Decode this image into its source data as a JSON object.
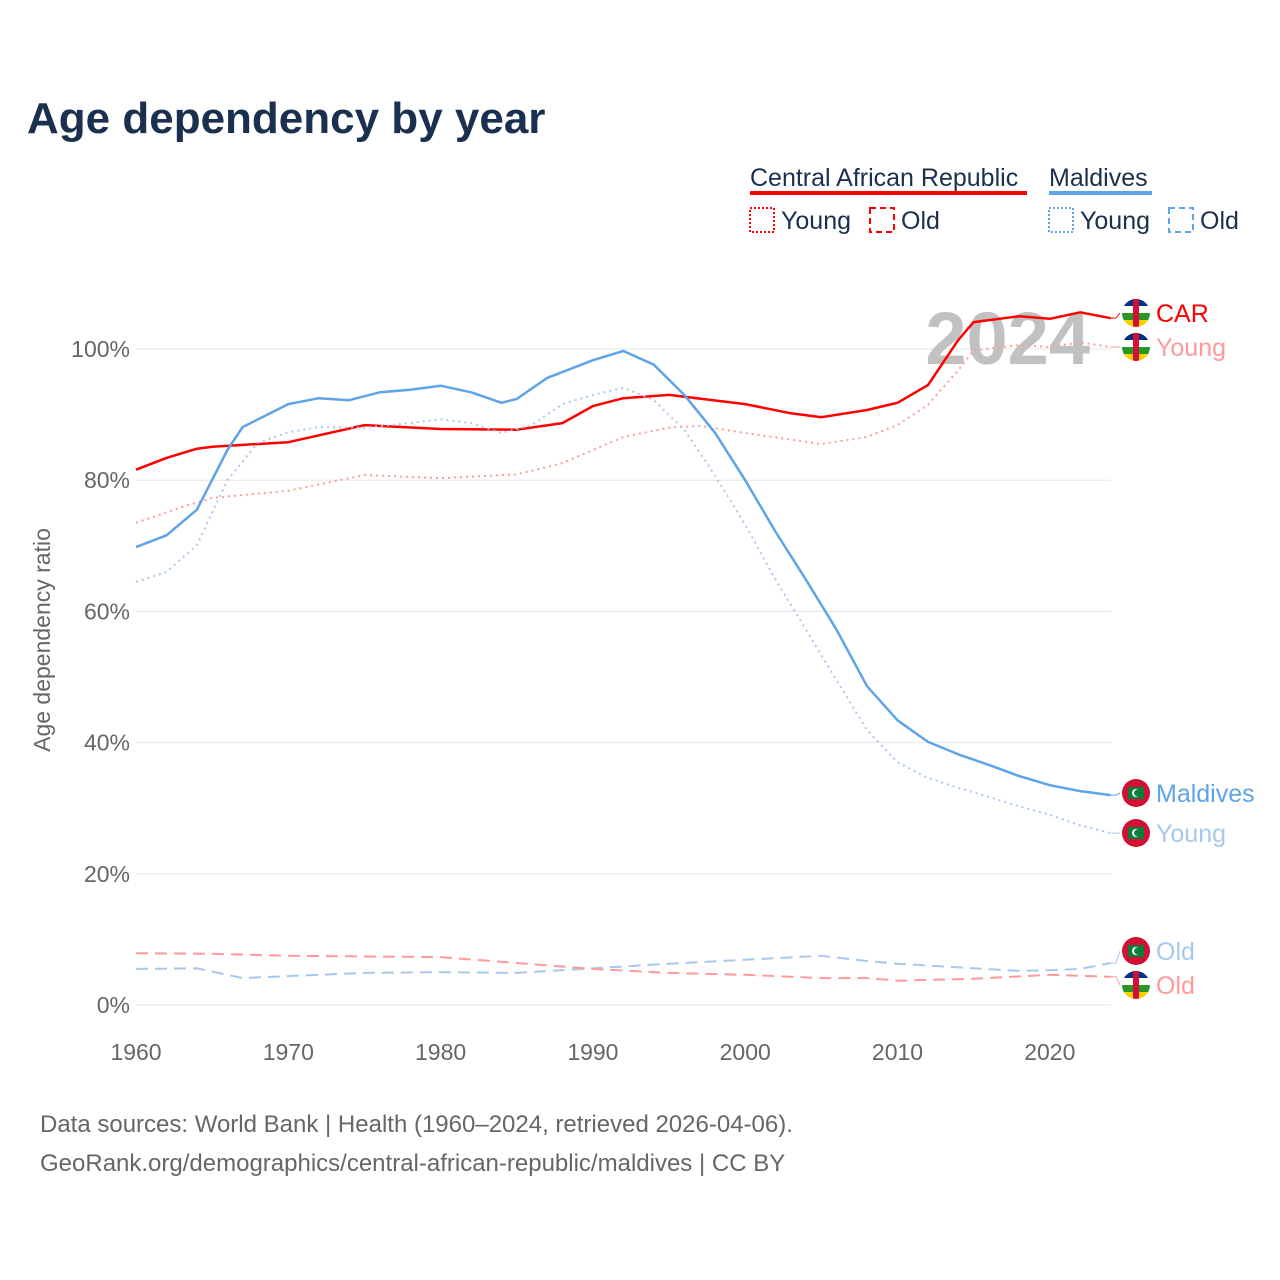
{
  "chart_data": {
    "type": "line",
    "title": "Age dependency by year",
    "xlabel": "",
    "ylabel": "Age dependency ratio",
    "xlim": [
      1960,
      2024
    ],
    "ylim": [
      0,
      110
    ],
    "x_ticks": [
      "1960",
      "1970",
      "1980",
      "1990",
      "2000",
      "2010",
      "2020"
    ],
    "y_ticks": [
      "0%",
      "20%",
      "40%",
      "60%",
      "80%",
      "100%"
    ],
    "grid": true,
    "year_watermark": "2024",
    "legend": {
      "placement": "top-right",
      "groups": [
        {
          "name": "Central African Republic",
          "color": "#ff0000",
          "items": [
            "Young",
            "Old"
          ]
        },
        {
          "name": "Maldives",
          "color": "#5fa3e8",
          "items": [
            "Young",
            "Old"
          ]
        }
      ]
    },
    "series": [
      {
        "name": "Central African Republic",
        "end_label": "CAR",
        "color": "#ff0000",
        "style": "solid",
        "flag": "car",
        "points": [
          [
            1960,
            81.6
          ],
          [
            1962,
            83.4
          ],
          [
            1964,
            84.8
          ],
          [
            1965,
            85.1
          ],
          [
            1970,
            85.8
          ],
          [
            1975,
            88.4
          ],
          [
            1980,
            87.8
          ],
          [
            1985,
            87.7
          ],
          [
            1988,
            88.7
          ],
          [
            1990,
            91.3
          ],
          [
            1992,
            92.5
          ],
          [
            1995,
            93.0
          ],
          [
            2000,
            91.6
          ],
          [
            2003,
            90.2
          ],
          [
            2005,
            89.6
          ],
          [
            2008,
            90.7
          ],
          [
            2010,
            91.8
          ],
          [
            2012,
            94.5
          ],
          [
            2014,
            101.4
          ],
          [
            2015,
            104.1
          ],
          [
            2018,
            105.0
          ],
          [
            2020,
            104.6
          ],
          [
            2022,
            105.6
          ],
          [
            2024,
            104.7
          ]
        ]
      },
      {
        "name": "Central African Republic Young",
        "end_label": "Young",
        "color": "#ff9a9a",
        "style": "dotted",
        "flag": "car",
        "points": [
          [
            1960,
            73.5
          ],
          [
            1963,
            75.9
          ],
          [
            1965,
            77.3
          ],
          [
            1970,
            78.4
          ],
          [
            1975,
            80.8
          ],
          [
            1980,
            80.3
          ],
          [
            1985,
            80.9
          ],
          [
            1988,
            82.6
          ],
          [
            1990,
            84.6
          ],
          [
            1992,
            86.6
          ],
          [
            1995,
            88.0
          ],
          [
            1997,
            88.3
          ],
          [
            2000,
            87.2
          ],
          [
            2005,
            85.5
          ],
          [
            2008,
            86.6
          ],
          [
            2010,
            88.4
          ],
          [
            2012,
            91.5
          ],
          [
            2014,
            96.8
          ],
          [
            2015,
            99.8
          ],
          [
            2018,
            100.6
          ],
          [
            2020,
            100.3
          ],
          [
            2022,
            101.0
          ],
          [
            2024,
            100.3
          ]
        ]
      },
      {
        "name": "Maldives",
        "end_label": "Maldives",
        "color": "#5fa3e8",
        "style": "solid",
        "flag": "mdv",
        "points": [
          [
            1960,
            69.8
          ],
          [
            1962,
            71.6
          ],
          [
            1964,
            75.5
          ],
          [
            1966,
            84.6
          ],
          [
            1967,
            88.1
          ],
          [
            1970,
            91.6
          ],
          [
            1972,
            92.5
          ],
          [
            1974,
            92.2
          ],
          [
            1976,
            93.4
          ],
          [
            1978,
            93.8
          ],
          [
            1980,
            94.4
          ],
          [
            1982,
            93.4
          ],
          [
            1984,
            91.8
          ],
          [
            1985,
            92.4
          ],
          [
            1987,
            95.6
          ],
          [
            1990,
            98.3
          ],
          [
            1992,
            99.7
          ],
          [
            1994,
            97.6
          ],
          [
            1996,
            93.0
          ],
          [
            1998,
            87.3
          ],
          [
            2000,
            80.0
          ],
          [
            2002,
            72.1
          ],
          [
            2004,
            64.8
          ],
          [
            2006,
            57.2
          ],
          [
            2008,
            48.6
          ],
          [
            2010,
            43.4
          ],
          [
            2012,
            40.1
          ],
          [
            2014,
            38.2
          ],
          [
            2016,
            36.6
          ],
          [
            2018,
            34.9
          ],
          [
            2020,
            33.5
          ],
          [
            2022,
            32.6
          ],
          [
            2024,
            32.0
          ]
        ]
      },
      {
        "name": "Maldives Young",
        "end_label": "Young",
        "color": "#a7c8ee",
        "style": "dotted",
        "flag": "mdv",
        "points": [
          [
            1960,
            64.5
          ],
          [
            1962,
            66.0
          ],
          [
            1964,
            70.1
          ],
          [
            1966,
            80.0
          ],
          [
            1968,
            85.7
          ],
          [
            1970,
            87.3
          ],
          [
            1972,
            88.1
          ],
          [
            1975,
            88.0
          ],
          [
            1978,
            88.7
          ],
          [
            1980,
            89.3
          ],
          [
            1982,
            88.7
          ],
          [
            1984,
            87.2
          ],
          [
            1986,
            88.4
          ],
          [
            1988,
            91.6
          ],
          [
            1990,
            93.0
          ],
          [
            1992,
            94.1
          ],
          [
            1994,
            92.2
          ],
          [
            1996,
            87.7
          ],
          [
            1998,
            80.8
          ],
          [
            2000,
            73.2
          ],
          [
            2002,
            64.8
          ],
          [
            2004,
            57.2
          ],
          [
            2006,
            49.5
          ],
          [
            2008,
            41.9
          ],
          [
            2010,
            37.0
          ],
          [
            2012,
            34.6
          ],
          [
            2014,
            33.1
          ],
          [
            2016,
            31.7
          ],
          [
            2018,
            30.3
          ],
          [
            2020,
            29.0
          ],
          [
            2022,
            27.4
          ],
          [
            2024,
            26.2
          ]
        ]
      },
      {
        "name": "Maldives Old",
        "end_label": "Old",
        "color": "#a7c8ee",
        "style": "dashed",
        "flag": "mdv",
        "points": [
          [
            1960,
            5.5
          ],
          [
            1964,
            5.6
          ],
          [
            1967,
            4.1
          ],
          [
            1970,
            4.4
          ],
          [
            1975,
            4.9
          ],
          [
            1980,
            5.0
          ],
          [
            1985,
            4.9
          ],
          [
            1990,
            5.6
          ],
          [
            1995,
            6.3
          ],
          [
            2000,
            6.9
          ],
          [
            2005,
            7.5
          ],
          [
            2008,
            6.7
          ],
          [
            2010,
            6.3
          ],
          [
            2015,
            5.6
          ],
          [
            2018,
            5.2
          ],
          [
            2020,
            5.3
          ],
          [
            2022,
            5.5
          ],
          [
            2024,
            6.4
          ]
        ]
      },
      {
        "name": "Central African Republic Old",
        "end_label": "Old",
        "color": "#ff9a9a",
        "style": "dashed",
        "flag": "car",
        "points": [
          [
            1960,
            7.9
          ],
          [
            1965,
            7.8
          ],
          [
            1970,
            7.5
          ],
          [
            1980,
            7.3
          ],
          [
            1985,
            6.4
          ],
          [
            1990,
            5.5
          ],
          [
            1995,
            4.9
          ],
          [
            2000,
            4.6
          ],
          [
            2005,
            4.1
          ],
          [
            2008,
            4.1
          ],
          [
            2010,
            3.7
          ],
          [
            2015,
            4.0
          ],
          [
            2020,
            4.6
          ],
          [
            2024,
            4.3
          ]
        ]
      }
    ]
  },
  "source": {
    "line1": "Data sources: World Bank | Health (1960–2024, retrieved 2026-04-06).",
    "line2": "GeoRank.org/demographics/central-african-republic/maldives | CC BY"
  }
}
